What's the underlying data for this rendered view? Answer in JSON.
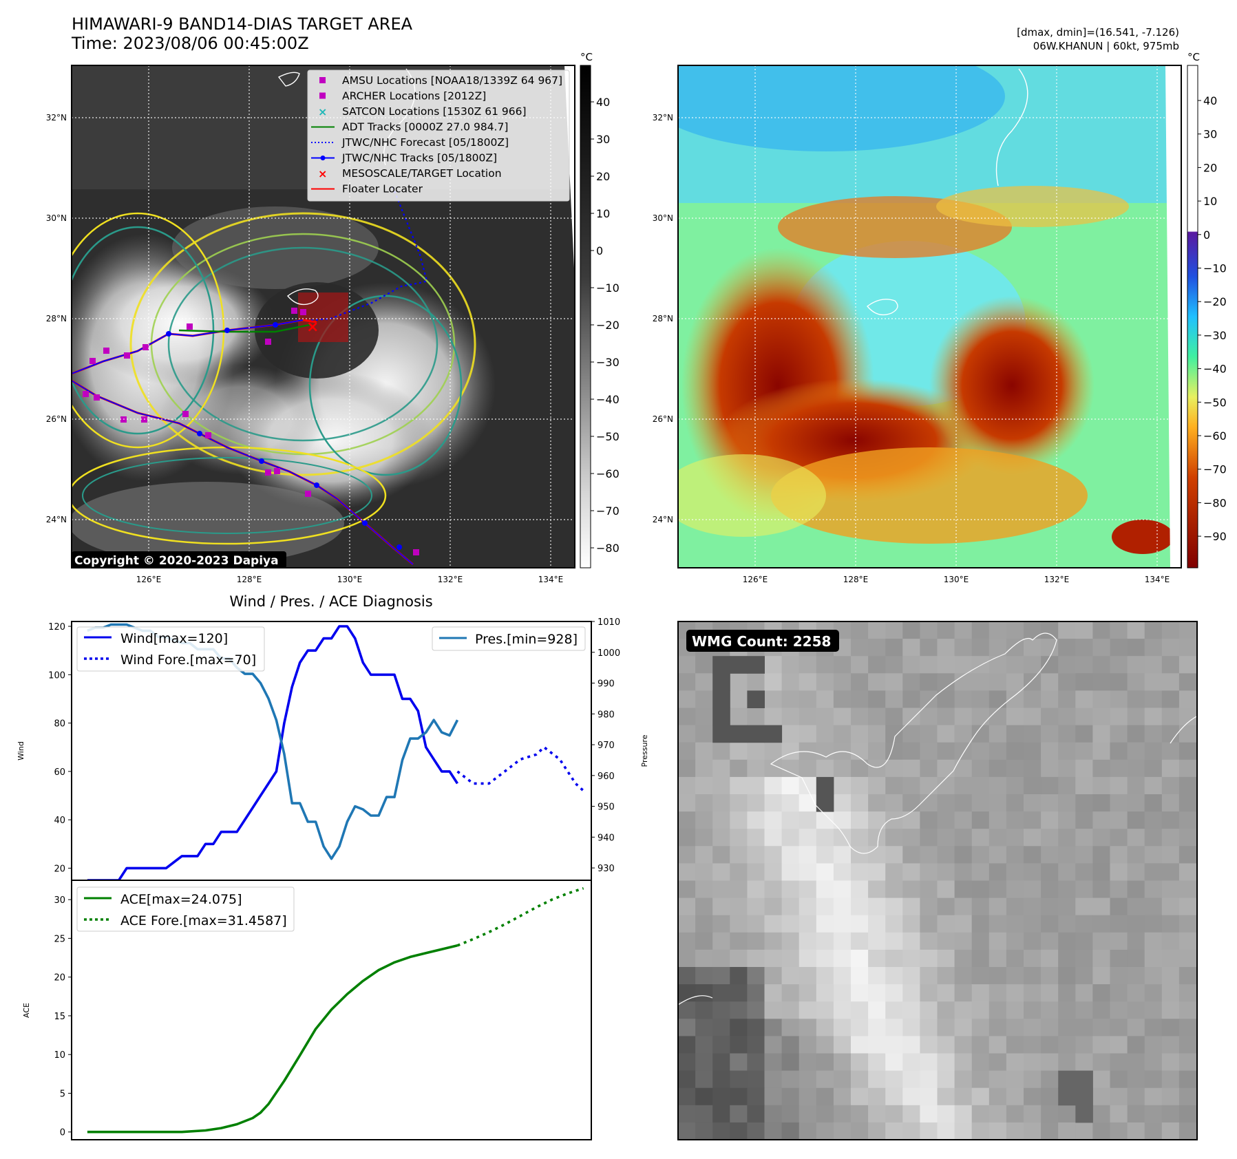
{
  "header": {
    "title_line1": "HIMAWARI-9 BAND14-DIAS TARGET AREA",
    "title_line2": "Time: 2023/08/06 00:45:00Z",
    "right_line1": "[dmax, dmin]=(16.541, -7.126)",
    "right_line2": "06W.KHANUN | 60kt, 975mb"
  },
  "map_axes": {
    "lat_ticks": [
      "32°N",
      "30°N",
      "28°N",
      "26°N",
      "24°N"
    ],
    "lon_ticks": [
      "126°E",
      "128°E",
      "130°E",
      "132°E",
      "134°E"
    ]
  },
  "ir_panel": {
    "copyright": "Copyright © 2020-2023 Dapiya",
    "colorbar_unit": "°C",
    "colorbar_ticks": [
      "40",
      "30",
      "20",
      "10",
      "0",
      "−10",
      "−20",
      "−30",
      "−40",
      "−50",
      "−60",
      "−70",
      "−80"
    ],
    "legend": [
      {
        "label": "AMSU Locations [NOAA18/1339Z 64 967]",
        "marker": "square",
        "color": "#c000c0"
      },
      {
        "label": "ARCHER Locations [2012Z]",
        "marker": "square",
        "color": "#c000c0"
      },
      {
        "label": "SATCON Locations [1530Z 61 966]",
        "marker": "x",
        "color": "#1fb8b8"
      },
      {
        "label": "ADT Tracks [0000Z 27.0 984.7]",
        "marker": "line",
        "color": "#008000"
      },
      {
        "label": "JTWC/NHC Forecast [05/1800Z]",
        "marker": "dotted",
        "color": "#0000ff"
      },
      {
        "label": "JTWC/NHC Tracks [05/1800Z]",
        "marker": "line-dot",
        "color": "#0000ff"
      },
      {
        "label": "MESOSCALE/TARGET Location",
        "marker": "x",
        "color": "#ff0000"
      },
      {
        "label": "Floater Locater",
        "marker": "line",
        "color": "#ff0000"
      }
    ]
  },
  "enhanced_panel": {
    "colorbar_unit": "°C",
    "colorbar_ticks": [
      "40",
      "30",
      "20",
      "10",
      "0",
      "−10",
      "−20",
      "−30",
      "−40",
      "−50",
      "−60",
      "−70",
      "−80",
      "−90"
    ]
  },
  "wmg_panel": {
    "badge": "WMG Count: 2258"
  },
  "colors": {
    "wind": "#0000ee",
    "pressure": "#1f77b4",
    "ace": "#008000",
    "magenta": "#c000c0",
    "red": "#ff0000"
  },
  "chart_data": [
    {
      "type": "line",
      "title": "Wind / Pres. / ACE Diagnosis",
      "ylabel": "Wind",
      "ylabel_right": "Pressure",
      "ylim": [
        15,
        122
      ],
      "ylim_right": [
        926,
        1010
      ],
      "yticks": [
        20,
        40,
        60,
        80,
        100,
        120
      ],
      "yticks_right": [
        930,
        940,
        950,
        960,
        970,
        980,
        990,
        1000,
        1010
      ],
      "xlim": [
        -1,
        65
      ],
      "legend_left": [
        "Wind[max=120]",
        "Wind Fore.[max=70]"
      ],
      "legend_right": [
        "Pres.[min=928]"
      ],
      "series": [
        {
          "name": "Wind[max=120]",
          "axis": "left",
          "style": "solid",
          "color": "#0000ee",
          "x": [
            1,
            3,
            5,
            6,
            8,
            10,
            11,
            13,
            14,
            15,
            16,
            17,
            18,
            20,
            21,
            22,
            23,
            24,
            25,
            26,
            27,
            28,
            29,
            30,
            31,
            32,
            33,
            34,
            35,
            36,
            37,
            38,
            39,
            40,
            41,
            42,
            43,
            44,
            45,
            46,
            47,
            48
          ],
          "y": [
            15,
            15,
            15,
            20,
            20,
            20,
            20,
            25,
            25,
            25,
            30,
            30,
            35,
            35,
            40,
            45,
            50,
            55,
            60,
            80,
            95,
            105,
            110,
            110,
            115,
            115,
            120,
            120,
            115,
            105,
            100,
            100,
            100,
            100,
            90,
            90,
            85,
            70,
            65,
            60,
            60,
            55
          ]
        },
        {
          "name": "Wind Fore.[max=70]",
          "axis": "left",
          "style": "dotted",
          "color": "#0000ee",
          "x": [
            48,
            50,
            52,
            54,
            56,
            58,
            59,
            61,
            63,
            64
          ],
          "y": [
            60,
            55,
            55,
            60,
            65,
            67,
            70,
            65,
            55,
            52
          ]
        },
        {
          "name": "Pres.[min=928]",
          "axis": "right",
          "style": "solid",
          "color": "#1f77b4",
          "x": [
            1,
            2,
            3,
            4,
            5,
            6,
            7,
            8,
            9,
            10,
            11,
            12,
            13,
            14,
            15,
            16,
            17,
            18,
            19,
            20,
            21,
            22,
            23,
            24,
            25,
            26,
            27,
            28,
            29,
            30,
            31,
            32,
            33,
            34,
            35,
            36,
            37,
            38,
            39,
            40,
            41,
            42,
            43,
            44,
            45,
            46,
            47,
            48
          ],
          "y": [
            1007,
            1008,
            1008,
            1009,
            1009,
            1009,
            1008,
            1007,
            1007,
            1005,
            1005,
            1004,
            1003,
            1003,
            1001,
            1001,
            1001,
            998,
            998,
            995,
            993,
            993,
            990,
            985,
            978,
            967,
            951,
            951,
            945,
            945,
            937,
            933,
            937,
            945,
            950,
            949,
            947,
            947,
            953,
            953,
            965,
            972,
            972,
            974,
            978,
            974,
            973,
            978
          ]
        }
      ]
    },
    {
      "type": "line",
      "ylabel": "ACE",
      "ylim": [
        -1,
        32.5
      ],
      "yticks": [
        0,
        5,
        10,
        15,
        20,
        25,
        30
      ],
      "xlim": [
        -1,
        65
      ],
      "legend": [
        "ACE[max=24.075]",
        "ACE Fore.[max=31.4587]"
      ],
      "series": [
        {
          "name": "ACE[max=24.075]",
          "style": "solid",
          "color": "#008000",
          "x": [
            1,
            5,
            10,
            13,
            16,
            18,
            20,
            22,
            23,
            24,
            26,
            28,
            30,
            32,
            34,
            36,
            38,
            40,
            42,
            44,
            46,
            48
          ],
          "y": [
            0,
            0,
            0,
            0,
            0.2,
            0.5,
            1.0,
            1.8,
            2.5,
            3.6,
            6.6,
            9.9,
            13.3,
            15.8,
            17.8,
            19.5,
            20.9,
            21.9,
            22.6,
            23.1,
            23.6,
            24.075
          ]
        },
        {
          "name": "ACE Fore.[max=31.4587]",
          "style": "dotted",
          "color": "#008000",
          "x": [
            48,
            50,
            52,
            54,
            56,
            58,
            60,
            62,
            64
          ],
          "y": [
            24.075,
            24.9,
            25.8,
            26.8,
            27.9,
            29.0,
            30.0,
            30.8,
            31.4587
          ]
        }
      ]
    }
  ]
}
